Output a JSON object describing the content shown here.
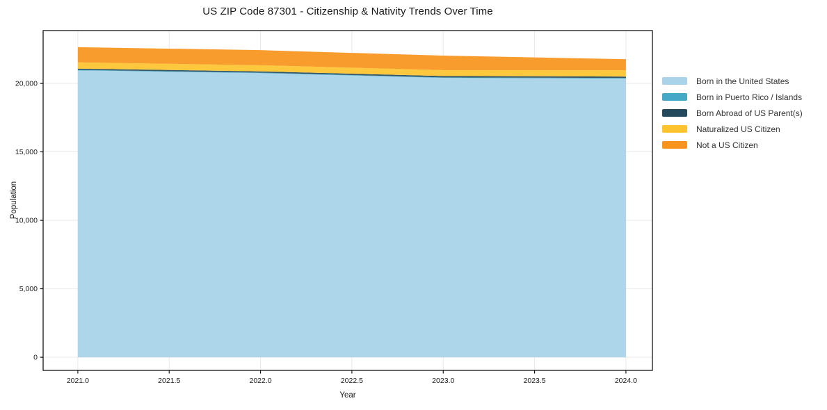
{
  "title": "US ZIP Code 87301 - Citizenship & Nativity Trends Over Time",
  "chart_data": {
    "type": "area",
    "stacked": true,
    "title": "US ZIP Code 87301 - Citizenship & Nativity Trends Over Time",
    "xlabel": "Year",
    "ylabel": "Population",
    "x": [
      2021,
      2022,
      2023,
      2024
    ],
    "series": [
      {
        "name": "Born in the United States",
        "color": "#a8d3e9",
        "values": [
          20950,
          20750,
          20400,
          20350
        ]
      },
      {
        "name": "Born in Puerto Rico / Islands",
        "color": "#45a8c6",
        "values": [
          40,
          40,
          40,
          50
        ]
      },
      {
        "name": "Born Abroad of US Parent(s)",
        "color": "#23495c",
        "values": [
          90,
          90,
          100,
          100
        ]
      },
      {
        "name": "Naturalized US Citizen",
        "color": "#fdc42f",
        "values": [
          460,
          450,
          430,
          460
        ]
      },
      {
        "name": "Not a US Citizen",
        "color": "#f8941e",
        "values": [
          1110,
          1100,
          1060,
          810
        ]
      }
    ],
    "totals": [
      22650,
      22430,
      22030,
      21770
    ],
    "xlim": [
      2020.81,
      2024.145
    ],
    "ylim": [
      -960,
      23860
    ],
    "xticks": {
      "values": [
        2021,
        2021.5,
        2022,
        2022.5,
        2023,
        2023.5,
        2024
      ],
      "labels": [
        "2021.0",
        "2021.5",
        "2022.0",
        "2022.5",
        "2023.0",
        "2023.5",
        "2024.0"
      ]
    },
    "yticks": {
      "values": [
        0,
        5000,
        10000,
        15000,
        20000
      ],
      "labels": [
        "0",
        "5,000",
        "10,000",
        "15,000",
        "20,000"
      ]
    },
    "grid": true,
    "legend_position": "right-outside"
  },
  "colors": {
    "background": "#ffffff",
    "grid": "#e9e9e9",
    "spine": "#000000",
    "tick_text": "#1a1a1a",
    "legend_text": "#333333"
  }
}
